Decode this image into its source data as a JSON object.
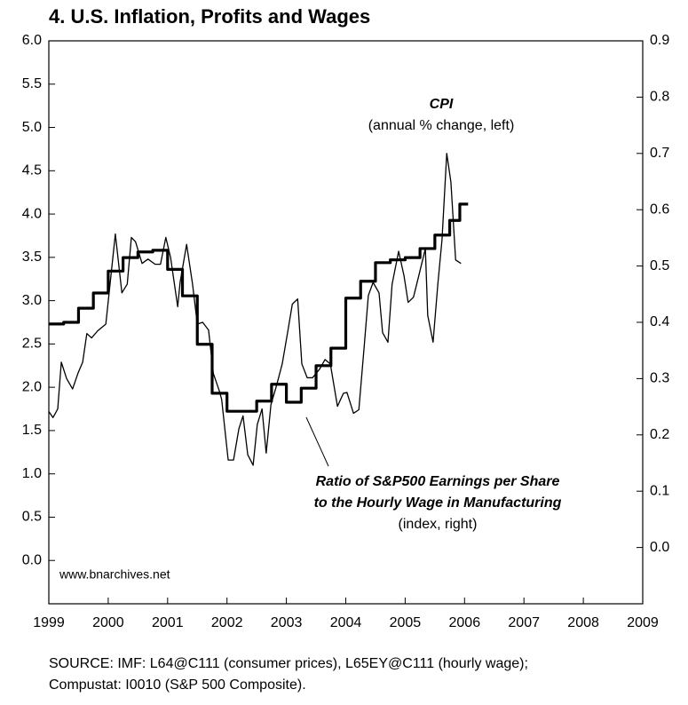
{
  "chart_data": {
    "type": "line",
    "title": "4. U.S. Inflation, Profits and Wages",
    "annotations": [
      "CPI",
      "(annual % change, left)",
      "Ratio of S&P500 Earnings per Share",
      "to the Hourly Wage in Manufacturing",
      "(index, right)",
      "www.bnarchives.net"
    ],
    "source": [
      "SOURCE: IMF: L64@C111 (consumer prices), L65EY@C111 (hourly wage);",
      "Compustat: I0010 (S&P 500 Composite)."
    ],
    "xlim": [
      1999,
      2009
    ],
    "xticks": [
      1999,
      2000,
      2001,
      2002,
      2003,
      2004,
      2005,
      2006,
      2007,
      2008,
      2009
    ],
    "ylim": [
      -0.5,
      6.0
    ],
    "yticks": [
      {
        "value": 0,
        "label": "0.0"
      },
      0.5,
      {
        "value": 1,
        "label": "1.0"
      },
      1.5,
      {
        "value": 2,
        "label": "2.0"
      },
      2.5,
      {
        "value": 3,
        "label": "3.0"
      },
      3.5,
      {
        "value": 4,
        "label": "4.0"
      },
      4.5,
      {
        "value": 5,
        "label": "5.0"
      },
      5.5,
      {
        "value": 6,
        "label": "6.0"
      }
    ],
    "y2lim": [
      -0.1,
      0.9
    ],
    "y2ticks": [
      {
        "value": 0,
        "label": "0.0"
      },
      0.1,
      0.2,
      0.3,
      0.4,
      0.5,
      0.6,
      0.7,
      0.8,
      0.9
    ],
    "series": [
      {
        "color": "#000000",
        "width": 1.3,
        "x": [
          1999.0,
          1999.07,
          1999.15,
          1999.21,
          1999.3,
          1999.4,
          1999.49,
          1999.57,
          1999.64,
          1999.72,
          1999.82,
          1999.96,
          2000.12,
          2000.23,
          2000.32,
          2000.39,
          2000.46,
          2000.57,
          2000.67,
          2000.79,
          2000.88,
          2000.97,
          2001.05,
          2001.17,
          2001.21,
          2001.32,
          2001.42,
          2001.5,
          2001.59,
          2001.69,
          2001.77,
          2001.87,
          2001.91,
          2002.02,
          2002.11,
          2002.2,
          2002.27,
          2002.35,
          2002.44,
          2002.51,
          2002.59,
          2002.66,
          2002.74,
          2002.83,
          2002.93,
          2003.02,
          2003.1,
          2003.19,
          2003.26,
          2003.35,
          2003.44,
          2003.56,
          2003.65,
          2003.74,
          2003.86,
          2003.96,
          2004.02,
          2004.13,
          2004.22,
          2004.31,
          2004.38,
          2004.46,
          2004.56,
          2004.62,
          2004.71,
          2004.78,
          2004.89,
          2004.98,
          2005.05,
          2005.14,
          2005.23,
          2005.34,
          2005.38,
          2005.47,
          2005.55,
          2005.62,
          2005.7,
          2005.77,
          2005.85,
          2005.94
        ],
        "values": [
          1.72,
          1.65,
          1.75,
          2.29,
          2.1,
          1.98,
          2.16,
          2.29,
          2.62,
          2.57,
          2.65,
          2.73,
          3.77,
          3.09,
          3.19,
          3.73,
          3.68,
          3.43,
          3.48,
          3.42,
          3.42,
          3.73,
          3.5,
          2.93,
          3.21,
          3.65,
          3.19,
          2.73,
          2.75,
          2.66,
          2.16,
          1.96,
          1.86,
          1.16,
          1.16,
          1.52,
          1.67,
          1.22,
          1.1,
          1.57,
          1.75,
          1.24,
          1.8,
          2.01,
          2.27,
          2.63,
          2.96,
          3.02,
          2.27,
          2.11,
          2.11,
          2.21,
          2.32,
          2.27,
          1.78,
          1.93,
          1.94,
          1.7,
          1.74,
          2.47,
          3.06,
          3.21,
          3.09,
          2.63,
          2.52,
          3.19,
          3.57,
          3.29,
          2.98,
          3.04,
          3.29,
          3.6,
          2.83,
          2.52,
          3.19,
          3.7,
          4.7,
          4.37,
          3.47,
          3.43
        ]
      },
      {
        "color": "#000000",
        "width": 3.2,
        "axis": "y2",
        "x": [
          1999,
          1999.25,
          1999.25,
          1999.5,
          1999.5,
          1999.75,
          1999.75,
          2000,
          2000,
          2000.25,
          2000.25,
          2000.5,
          2000.5,
          2000.75,
          2000.75,
          2001,
          2001,
          2001.25,
          2001.25,
          2001.5,
          2001.5,
          2001.75,
          2001.75,
          2002,
          2002,
          2002.25,
          2002.25,
          2002.5,
          2002.5,
          2002.75,
          2002.75,
          2003,
          2003,
          2003.25,
          2003.25,
          2003.5,
          2003.5,
          2003.75,
          2003.75,
          2004,
          2004,
          2004.25,
          2004.25,
          2004.5,
          2004.5,
          2004.75,
          2004.75,
          2005,
          2005,
          2005.25,
          2005.25,
          2005.5,
          2005.5,
          2005.75,
          2005.75,
          2005.92,
          2005.92,
          2006.06
        ],
        "values": [
          0.397,
          0.397,
          0.4,
          0.4,
          0.425,
          0.425,
          0.452,
          0.452,
          0.491,
          0.491,
          0.515,
          0.515,
          0.525,
          0.525,
          0.528,
          0.528,
          0.494,
          0.494,
          0.447,
          0.447,
          0.361,
          0.361,
          0.274,
          0.274,
          0.242,
          0.242,
          0.242,
          0.242,
          0.26,
          0.26,
          0.29,
          0.29,
          0.258,
          0.258,
          0.283,
          0.283,
          0.323,
          0.323,
          0.354,
          0.354,
          0.443,
          0.443,
          0.473,
          0.473,
          0.506,
          0.506,
          0.511,
          0.511,
          0.515,
          0.515,
          0.531,
          0.531,
          0.555,
          0.555,
          0.581,
          0.581,
          0.61,
          0.61
        ]
      }
    ]
  }
}
